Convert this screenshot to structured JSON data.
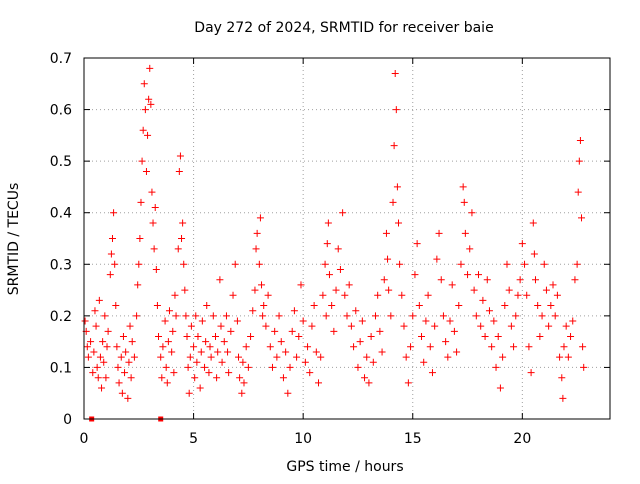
{
  "chart_data": {
    "type": "scatter",
    "title": "Day 272 of 2024, SRMTID for receiver baie",
    "xlabel": "GPS time / hours",
    "ylabel": "SRMTID / TECUs",
    "xlim": [
      0,
      24
    ],
    "ylim": [
      0,
      0.7
    ],
    "xticks": [
      0,
      5,
      10,
      15,
      20
    ],
    "xtick_labels": [
      "0",
      "5",
      "10",
      "15",
      "20"
    ],
    "yticks": [
      0,
      0.1,
      0.2,
      0.3,
      0.4,
      0.5,
      0.6,
      0.7
    ],
    "ytick_labels": [
      "0",
      "0.1",
      "0.2",
      "0.3",
      "0.4",
      "0.5",
      "0.6",
      "0.7"
    ],
    "grid": true,
    "marker": "+",
    "marker_color": "#ff0000",
    "zero_markers": [
      {
        "x": 0.35,
        "y": 0
      },
      {
        "x": 3.5,
        "y": 0
      }
    ],
    "series": [
      {
        "name": "SRMTID",
        "points": [
          [
            0.05,
            0.19
          ],
          [
            0.1,
            0.17
          ],
          [
            0.15,
            0.14
          ],
          [
            0.2,
            0.12
          ],
          [
            0.3,
            0.15
          ],
          [
            0.4,
            0.09
          ],
          [
            0.45,
            0.13
          ],
          [
            0.5,
            0.21
          ],
          [
            0.55,
            0.18
          ],
          [
            0.6,
            0.1
          ],
          [
            0.65,
            0.08
          ],
          [
            0.7,
            0.23
          ],
          [
            0.75,
            0.12
          ],
          [
            0.8,
            0.06
          ],
          [
            0.85,
            0.15
          ],
          [
            0.9,
            0.11
          ],
          [
            0.95,
            0.2
          ],
          [
            1.0,
            0.08
          ],
          [
            1.05,
            0.14
          ],
          [
            1.1,
            0.17
          ],
          [
            1.2,
            0.28
          ],
          [
            1.25,
            0.32
          ],
          [
            1.3,
            0.35
          ],
          [
            1.35,
            0.4
          ],
          [
            1.4,
            0.3
          ],
          [
            1.45,
            0.22
          ],
          [
            1.5,
            0.14
          ],
          [
            1.55,
            0.1
          ],
          [
            1.6,
            0.07
          ],
          [
            1.7,
            0.12
          ],
          [
            1.75,
            0.05
          ],
          [
            1.8,
            0.16
          ],
          [
            1.85,
            0.09
          ],
          [
            1.9,
            0.13
          ],
          [
            2.0,
            0.04
          ],
          [
            2.05,
            0.11
          ],
          [
            2.1,
            0.18
          ],
          [
            2.15,
            0.08
          ],
          [
            2.2,
            0.15
          ],
          [
            2.3,
            0.12
          ],
          [
            2.4,
            0.2
          ],
          [
            2.45,
            0.26
          ],
          [
            2.5,
            0.3
          ],
          [
            2.55,
            0.35
          ],
          [
            2.6,
            0.42
          ],
          [
            2.65,
            0.5
          ],
          [
            2.7,
            0.56
          ],
          [
            2.75,
            0.65
          ],
          [
            2.8,
            0.6
          ],
          [
            2.85,
            0.48
          ],
          [
            2.9,
            0.55
          ],
          [
            2.95,
            0.62
          ],
          [
            3.0,
            0.68
          ],
          [
            3.05,
            0.61
          ],
          [
            3.1,
            0.44
          ],
          [
            3.15,
            0.38
          ],
          [
            3.2,
            0.33
          ],
          [
            3.25,
            0.41
          ],
          [
            3.3,
            0.29
          ],
          [
            3.35,
            0.22
          ],
          [
            3.4,
            0.16
          ],
          [
            3.5,
            0.12
          ],
          [
            3.55,
            0.08
          ],
          [
            3.6,
            0.14
          ],
          [
            3.7,
            0.19
          ],
          [
            3.75,
            0.1
          ],
          [
            3.8,
            0.07
          ],
          [
            3.85,
            0.15
          ],
          [
            3.9,
            0.21
          ],
          [
            4.0,
            0.13
          ],
          [
            4.05,
            0.17
          ],
          [
            4.1,
            0.09
          ],
          [
            4.15,
            0.24
          ],
          [
            4.2,
            0.2
          ],
          [
            4.3,
            0.33
          ],
          [
            4.35,
            0.48
          ],
          [
            4.4,
            0.51
          ],
          [
            4.45,
            0.35
          ],
          [
            4.5,
            0.38
          ],
          [
            4.55,
            0.3
          ],
          [
            4.6,
            0.25
          ],
          [
            4.65,
            0.2
          ],
          [
            4.7,
            0.16
          ],
          [
            4.75,
            0.1
          ],
          [
            4.8,
            0.05
          ],
          [
            4.85,
            0.12
          ],
          [
            4.9,
            0.18
          ],
          [
            5.0,
            0.14
          ],
          [
            5.05,
            0.08
          ],
          [
            5.1,
            0.2
          ],
          [
            5.15,
            0.11
          ],
          [
            5.2,
            0.16
          ],
          [
            5.3,
            0.06
          ],
          [
            5.35,
            0.13
          ],
          [
            5.4,
            0.19
          ],
          [
            5.5,
            0.1
          ],
          [
            5.55,
            0.15
          ],
          [
            5.6,
            0.22
          ],
          [
            5.7,
            0.09
          ],
          [
            5.75,
            0.14
          ],
          [
            5.8,
            0.12
          ],
          [
            5.9,
            0.2
          ],
          [
            6.0,
            0.16
          ],
          [
            6.05,
            0.08
          ],
          [
            6.1,
            0.13
          ],
          [
            6.2,
            0.27
          ],
          [
            6.25,
            0.18
          ],
          [
            6.3,
            0.11
          ],
          [
            6.4,
            0.15
          ],
          [
            6.5,
            0.2
          ],
          [
            6.55,
            0.13
          ],
          [
            6.6,
            0.09
          ],
          [
            6.7,
            0.17
          ],
          [
            6.8,
            0.24
          ],
          [
            6.9,
            0.3
          ],
          [
            7.0,
            0.19
          ],
          [
            7.05,
            0.12
          ],
          [
            7.1,
            0.08
          ],
          [
            7.2,
            0.05
          ],
          [
            7.25,
            0.11
          ],
          [
            7.3,
            0.07
          ],
          [
            7.4,
            0.14
          ],
          [
            7.5,
            0.1
          ],
          [
            7.6,
            0.16
          ],
          [
            7.7,
            0.21
          ],
          [
            7.8,
            0.25
          ],
          [
            7.85,
            0.33
          ],
          [
            7.9,
            0.36
          ],
          [
            8.0,
            0.3
          ],
          [
            8.05,
            0.39
          ],
          [
            8.1,
            0.26
          ],
          [
            8.15,
            0.2
          ],
          [
            8.2,
            0.22
          ],
          [
            8.3,
            0.18
          ],
          [
            8.4,
            0.24
          ],
          [
            8.5,
            0.14
          ],
          [
            8.6,
            0.1
          ],
          [
            8.7,
            0.17
          ],
          [
            8.8,
            0.12
          ],
          [
            8.9,
            0.2
          ],
          [
            9.0,
            0.15
          ],
          [
            9.1,
            0.08
          ],
          [
            9.2,
            0.13
          ],
          [
            9.3,
            0.05
          ],
          [
            9.4,
            0.1
          ],
          [
            9.5,
            0.17
          ],
          [
            9.6,
            0.21
          ],
          [
            9.7,
            0.12
          ],
          [
            9.8,
            0.16
          ],
          [
            9.9,
            0.26
          ],
          [
            10.0,
            0.19
          ],
          [
            10.1,
            0.11
          ],
          [
            10.2,
            0.14
          ],
          [
            10.3,
            0.09
          ],
          [
            10.4,
            0.18
          ],
          [
            10.5,
            0.22
          ],
          [
            10.6,
            0.13
          ],
          [
            10.7,
            0.07
          ],
          [
            10.8,
            0.12
          ],
          [
            10.9,
            0.24
          ],
          [
            11.0,
            0.3
          ],
          [
            11.05,
            0.2
          ],
          [
            11.1,
            0.34
          ],
          [
            11.15,
            0.38
          ],
          [
            11.2,
            0.28
          ],
          [
            11.3,
            0.22
          ],
          [
            11.4,
            0.17
          ],
          [
            11.5,
            0.25
          ],
          [
            11.6,
            0.33
          ],
          [
            11.7,
            0.29
          ],
          [
            11.8,
            0.4
          ],
          [
            11.9,
            0.24
          ],
          [
            12.0,
            0.2
          ],
          [
            12.1,
            0.26
          ],
          [
            12.2,
            0.18
          ],
          [
            12.3,
            0.14
          ],
          [
            12.4,
            0.21
          ],
          [
            12.5,
            0.1
          ],
          [
            12.6,
            0.15
          ],
          [
            12.7,
            0.19
          ],
          [
            12.8,
            0.08
          ],
          [
            12.9,
            0.12
          ],
          [
            13.0,
            0.07
          ],
          [
            13.1,
            0.16
          ],
          [
            13.2,
            0.11
          ],
          [
            13.3,
            0.2
          ],
          [
            13.4,
            0.24
          ],
          [
            13.5,
            0.17
          ],
          [
            13.6,
            0.13
          ],
          [
            13.7,
            0.27
          ],
          [
            13.8,
            0.36
          ],
          [
            13.85,
            0.31
          ],
          [
            13.9,
            0.25
          ],
          [
            14.0,
            0.2
          ],
          [
            14.1,
            0.42
          ],
          [
            14.15,
            0.53
          ],
          [
            14.2,
            0.67
          ],
          [
            14.25,
            0.6
          ],
          [
            14.3,
            0.45
          ],
          [
            14.35,
            0.38
          ],
          [
            14.4,
            0.3
          ],
          [
            14.5,
            0.24
          ],
          [
            14.6,
            0.18
          ],
          [
            14.7,
            0.12
          ],
          [
            14.8,
            0.07
          ],
          [
            14.9,
            0.14
          ],
          [
            15.0,
            0.2
          ],
          [
            15.1,
            0.28
          ],
          [
            15.2,
            0.34
          ],
          [
            15.3,
            0.22
          ],
          [
            15.4,
            0.16
          ],
          [
            15.5,
            0.11
          ],
          [
            15.6,
            0.19
          ],
          [
            15.7,
            0.24
          ],
          [
            15.8,
            0.14
          ],
          [
            15.9,
            0.09
          ],
          [
            16.0,
            0.18
          ],
          [
            16.1,
            0.31
          ],
          [
            16.2,
            0.36
          ],
          [
            16.3,
            0.27
          ],
          [
            16.4,
            0.2
          ],
          [
            16.5,
            0.15
          ],
          [
            16.6,
            0.12
          ],
          [
            16.7,
            0.19
          ],
          [
            16.8,
            0.26
          ],
          [
            16.9,
            0.17
          ],
          [
            17.0,
            0.13
          ],
          [
            17.1,
            0.22
          ],
          [
            17.2,
            0.3
          ],
          [
            17.3,
            0.45
          ],
          [
            17.35,
            0.42
          ],
          [
            17.4,
            0.36
          ],
          [
            17.5,
            0.28
          ],
          [
            17.6,
            0.33
          ],
          [
            17.7,
            0.4
          ],
          [
            17.8,
            0.25
          ],
          [
            17.9,
            0.2
          ],
          [
            18.0,
            0.28
          ],
          [
            18.1,
            0.18
          ],
          [
            18.2,
            0.23
          ],
          [
            18.3,
            0.16
          ],
          [
            18.4,
            0.27
          ],
          [
            18.5,
            0.21
          ],
          [
            18.6,
            0.14
          ],
          [
            18.7,
            0.19
          ],
          [
            18.8,
            0.1
          ],
          [
            18.9,
            0.16
          ],
          [
            19.0,
            0.06
          ],
          [
            19.1,
            0.12
          ],
          [
            19.2,
            0.22
          ],
          [
            19.3,
            0.3
          ],
          [
            19.4,
            0.25
          ],
          [
            19.5,
            0.18
          ],
          [
            19.6,
            0.14
          ],
          [
            19.7,
            0.2
          ],
          [
            19.8,
            0.24
          ],
          [
            19.9,
            0.27
          ],
          [
            20.0,
            0.34
          ],
          [
            20.1,
            0.3
          ],
          [
            20.2,
            0.24
          ],
          [
            20.3,
            0.14
          ],
          [
            20.4,
            0.09
          ],
          [
            20.5,
            0.38
          ],
          [
            20.55,
            0.32
          ],
          [
            20.6,
            0.27
          ],
          [
            20.7,
            0.22
          ],
          [
            20.8,
            0.16
          ],
          [
            20.9,
            0.2
          ],
          [
            21.0,
            0.3
          ],
          [
            21.1,
            0.25
          ],
          [
            21.2,
            0.18
          ],
          [
            21.3,
            0.22
          ],
          [
            21.4,
            0.26
          ],
          [
            21.5,
            0.2
          ],
          [
            21.6,
            0.24
          ],
          [
            21.7,
            0.12
          ],
          [
            21.8,
            0.08
          ],
          [
            21.85,
            0.04
          ],
          [
            21.9,
            0.14
          ],
          [
            22.0,
            0.18
          ],
          [
            22.1,
            0.12
          ],
          [
            22.2,
            0.16
          ],
          [
            22.3,
            0.19
          ],
          [
            22.4,
            0.27
          ],
          [
            22.5,
            0.3
          ],
          [
            22.55,
            0.44
          ],
          [
            22.6,
            0.5
          ],
          [
            22.65,
            0.54
          ],
          [
            22.7,
            0.39
          ],
          [
            22.75,
            0.14
          ],
          [
            22.8,
            0.1
          ]
        ]
      }
    ]
  }
}
